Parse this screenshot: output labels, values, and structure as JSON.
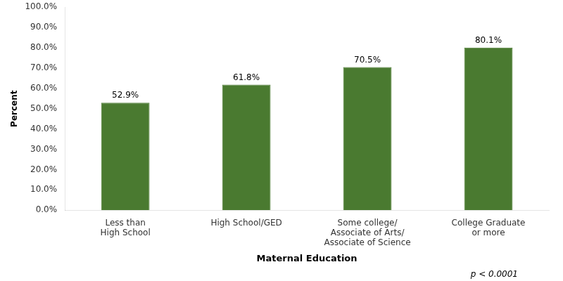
{
  "chart_data": {
    "type": "bar",
    "xlabel": "Maternal Education",
    "ylabel": "Percent",
    "categories": [
      "Less than\nHigh School",
      "High School/GED",
      "Some college/\nAssociate of Arts/\nAssociate of Science",
      "College Graduate\nor more"
    ],
    "values": [
      52.9,
      61.8,
      70.5,
      80.1
    ],
    "value_labels": [
      "52.9%",
      "61.8%",
      "70.5%",
      "80.1%"
    ],
    "data_labels": true,
    "color": "#4a7a30",
    "ylim": [
      0,
      100
    ],
    "yticks": [
      {
        "value": 0,
        "label": "0.0%"
      },
      {
        "value": 10,
        "label": "10.0%"
      },
      {
        "value": 20,
        "label": "20.0%"
      },
      {
        "value": 30,
        "label": "30.0%"
      },
      {
        "value": 40,
        "label": "40.0%"
      },
      {
        "value": 50,
        "label": "50.0%"
      },
      {
        "value": 60,
        "label": "60.0%"
      },
      {
        "value": 70,
        "label": "70.0%"
      },
      {
        "value": 80,
        "label": "80.0%"
      },
      {
        "value": 90,
        "label": "90.0%"
      },
      {
        "value": 100,
        "label": "100.0%"
      }
    ],
    "grid": false,
    "annotations": [
      "p < 0.0001"
    ]
  }
}
